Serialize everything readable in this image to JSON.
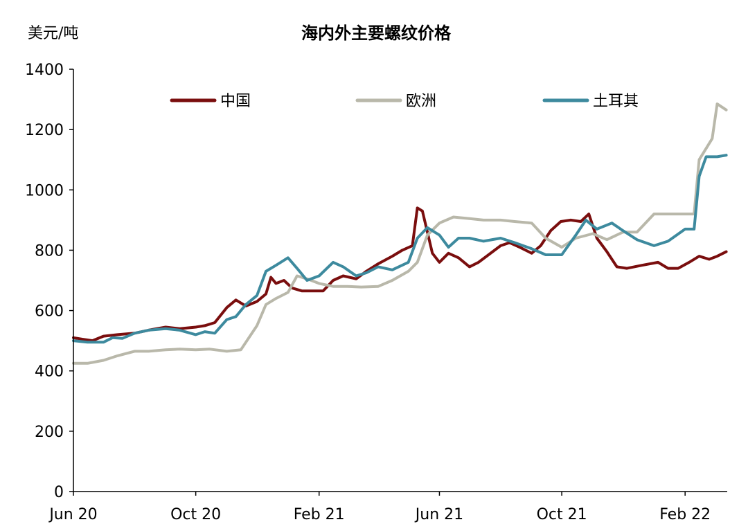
{
  "chart_data": {
    "type": "line",
    "title": "海内外主要螺纹价格",
    "unit": "美元/吨",
    "ylim": [
      0,
      1400
    ],
    "y_ticks": [
      0,
      200,
      400,
      600,
      800,
      1000,
      1200,
      1400
    ],
    "x_range": [
      "2020-06-01",
      "2022-03-15"
    ],
    "x_ticks": [
      {
        "date": "2020-06-01",
        "label": "Jun 20"
      },
      {
        "date": "2020-10-01",
        "label": "Oct 20"
      },
      {
        "date": "2021-02-01",
        "label": "Feb 21"
      },
      {
        "date": "2021-06-01",
        "label": "Jun 21"
      },
      {
        "date": "2021-10-01",
        "label": "Oct 21"
      },
      {
        "date": "2022-02-01",
        "label": "Feb 22"
      }
    ],
    "legend_position": "top",
    "series": [
      {
        "name": "中国",
        "color": "#7a0e0e",
        "points": [
          [
            "2020-06-01",
            510
          ],
          [
            "2020-06-10",
            505
          ],
          [
            "2020-06-20",
            500
          ],
          [
            "2020-07-01",
            515
          ],
          [
            "2020-07-15",
            520
          ],
          [
            "2020-08-01",
            525
          ],
          [
            "2020-08-15",
            535
          ],
          [
            "2020-09-01",
            545
          ],
          [
            "2020-09-15",
            540
          ],
          [
            "2020-10-01",
            545
          ],
          [
            "2020-10-10",
            550
          ],
          [
            "2020-10-20",
            560
          ],
          [
            "2020-11-01",
            610
          ],
          [
            "2020-11-10",
            635
          ],
          [
            "2020-11-20",
            615
          ],
          [
            "2020-12-01",
            630
          ],
          [
            "2020-12-10",
            655
          ],
          [
            "2020-12-15",
            710
          ],
          [
            "2020-12-20",
            690
          ],
          [
            "2020-12-28",
            700
          ],
          [
            "2021-01-05",
            675
          ],
          [
            "2021-01-15",
            665
          ],
          [
            "2021-01-25",
            665
          ],
          [
            "2021-02-05",
            665
          ],
          [
            "2021-02-15",
            700
          ],
          [
            "2021-02-25",
            715
          ],
          [
            "2021-03-10",
            705
          ],
          [
            "2021-03-20",
            730
          ],
          [
            "2021-04-01",
            755
          ],
          [
            "2021-04-15",
            780
          ],
          [
            "2021-04-25",
            800
          ],
          [
            "2021-05-05",
            815
          ],
          [
            "2021-05-10",
            940
          ],
          [
            "2021-05-15",
            930
          ],
          [
            "2021-05-20",
            860
          ],
          [
            "2021-05-25",
            790
          ],
          [
            "2021-06-01",
            760
          ],
          [
            "2021-06-10",
            790
          ],
          [
            "2021-06-20",
            775
          ],
          [
            "2021-07-01",
            745
          ],
          [
            "2021-07-10",
            760
          ],
          [
            "2021-07-20",
            785
          ],
          [
            "2021-08-01",
            815
          ],
          [
            "2021-08-10",
            825
          ],
          [
            "2021-08-20",
            810
          ],
          [
            "2021-09-01",
            790
          ],
          [
            "2021-09-10",
            815
          ],
          [
            "2021-09-20",
            865
          ],
          [
            "2021-09-30",
            895
          ],
          [
            "2021-10-10",
            900
          ],
          [
            "2021-10-20",
            895
          ],
          [
            "2021-10-28",
            920
          ],
          [
            "2021-11-05",
            840
          ],
          [
            "2021-11-15",
            795
          ],
          [
            "2021-11-25",
            745
          ],
          [
            "2021-12-05",
            740
          ],
          [
            "2021-12-20",
            750
          ],
          [
            "2022-01-05",
            760
          ],
          [
            "2022-01-15",
            740
          ],
          [
            "2022-01-25",
            740
          ],
          [
            "2022-02-05",
            760
          ],
          [
            "2022-02-15",
            780
          ],
          [
            "2022-02-25",
            770
          ],
          [
            "2022-03-05",
            780
          ],
          [
            "2022-03-14",
            795
          ]
        ]
      },
      {
        "name": "欧洲",
        "color": "#b9b8aa",
        "points": [
          [
            "2020-06-01",
            425
          ],
          [
            "2020-06-15",
            425
          ],
          [
            "2020-07-01",
            435
          ],
          [
            "2020-07-15",
            450
          ],
          [
            "2020-08-01",
            465
          ],
          [
            "2020-08-15",
            465
          ],
          [
            "2020-09-01",
            470
          ],
          [
            "2020-09-15",
            472
          ],
          [
            "2020-10-01",
            470
          ],
          [
            "2020-10-15",
            472
          ],
          [
            "2020-11-01",
            465
          ],
          [
            "2020-11-15",
            470
          ],
          [
            "2020-12-01",
            550
          ],
          [
            "2020-12-10",
            620
          ],
          [
            "2020-12-20",
            640
          ],
          [
            "2021-01-01",
            660
          ],
          [
            "2021-01-10",
            715
          ],
          [
            "2021-01-20",
            705
          ],
          [
            "2021-02-01",
            690
          ],
          [
            "2021-02-15",
            680
          ],
          [
            "2021-03-01",
            680
          ],
          [
            "2021-03-15",
            678
          ],
          [
            "2021-04-01",
            680
          ],
          [
            "2021-04-15",
            700
          ],
          [
            "2021-05-01",
            730
          ],
          [
            "2021-05-10",
            760
          ],
          [
            "2021-05-20",
            850
          ],
          [
            "2021-06-01",
            890
          ],
          [
            "2021-06-15",
            910
          ],
          [
            "2021-07-01",
            905
          ],
          [
            "2021-07-15",
            900
          ],
          [
            "2021-08-01",
            900
          ],
          [
            "2021-08-15",
            895
          ],
          [
            "2021-09-01",
            890
          ],
          [
            "2021-09-15",
            840
          ],
          [
            "2021-10-01",
            810
          ],
          [
            "2021-10-15",
            840
          ],
          [
            "2021-11-01",
            855
          ],
          [
            "2021-11-15",
            835
          ],
          [
            "2021-12-01",
            860
          ],
          [
            "2021-12-15",
            860
          ],
          [
            "2022-01-01",
            920
          ],
          [
            "2022-01-15",
            920
          ],
          [
            "2022-02-01",
            920
          ],
          [
            "2022-02-10",
            920
          ],
          [
            "2022-02-15",
            1100
          ],
          [
            "2022-02-28",
            1170
          ],
          [
            "2022-03-05",
            1285
          ],
          [
            "2022-03-14",
            1265
          ]
        ]
      },
      {
        "name": "土耳其",
        "color": "#3d8a9e",
        "points": [
          [
            "2020-06-01",
            500
          ],
          [
            "2020-06-15",
            495
          ],
          [
            "2020-07-01",
            495
          ],
          [
            "2020-07-10",
            510
          ],
          [
            "2020-07-20",
            508
          ],
          [
            "2020-08-01",
            525
          ],
          [
            "2020-08-15",
            535
          ],
          [
            "2020-09-01",
            540
          ],
          [
            "2020-09-15",
            535
          ],
          [
            "2020-10-01",
            520
          ],
          [
            "2020-10-10",
            530
          ],
          [
            "2020-10-20",
            525
          ],
          [
            "2020-11-01",
            570
          ],
          [
            "2020-11-10",
            580
          ],
          [
            "2020-11-20",
            620
          ],
          [
            "2020-12-01",
            650
          ],
          [
            "2020-12-10",
            730
          ],
          [
            "2020-12-20",
            750
          ],
          [
            "2021-01-01",
            775
          ],
          [
            "2021-01-10",
            740
          ],
          [
            "2021-01-20",
            700
          ],
          [
            "2021-02-01",
            715
          ],
          [
            "2021-02-15",
            760
          ],
          [
            "2021-02-25",
            745
          ],
          [
            "2021-03-10",
            715
          ],
          [
            "2021-03-20",
            725
          ],
          [
            "2021-04-01",
            745
          ],
          [
            "2021-04-15",
            735
          ],
          [
            "2021-05-01",
            760
          ],
          [
            "2021-05-10",
            840
          ],
          [
            "2021-05-20",
            875
          ],
          [
            "2021-06-01",
            850
          ],
          [
            "2021-06-10",
            810
          ],
          [
            "2021-06-20",
            840
          ],
          [
            "2021-07-01",
            840
          ],
          [
            "2021-07-15",
            830
          ],
          [
            "2021-08-01",
            840
          ],
          [
            "2021-08-15",
            825
          ],
          [
            "2021-09-01",
            805
          ],
          [
            "2021-09-15",
            785
          ],
          [
            "2021-10-01",
            785
          ],
          [
            "2021-10-15",
            850
          ],
          [
            "2021-10-25",
            900
          ],
          [
            "2021-11-05",
            870
          ],
          [
            "2021-11-20",
            890
          ],
          [
            "2021-12-01",
            865
          ],
          [
            "2021-12-15",
            835
          ],
          [
            "2022-01-01",
            815
          ],
          [
            "2022-01-15",
            830
          ],
          [
            "2022-02-01",
            870
          ],
          [
            "2022-02-10",
            870
          ],
          [
            "2022-02-15",
            1045
          ],
          [
            "2022-02-22",
            1110
          ],
          [
            "2022-03-05",
            1110
          ],
          [
            "2022-03-14",
            1115
          ]
        ]
      }
    ]
  }
}
